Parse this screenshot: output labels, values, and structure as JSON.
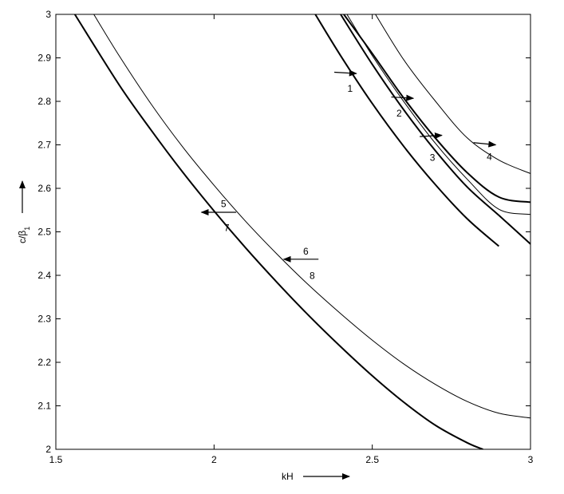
{
  "chart_data": {
    "type": "line",
    "title": "",
    "xlabel": "kH",
    "ylabel_main": "c/β",
    "ylabel_sub": "1",
    "xlim": [
      1.5,
      3
    ],
    "ylim": [
      2,
      3
    ],
    "grid": false,
    "xticks": [
      {
        "value": 1.5,
        "label": "1.5"
      },
      {
        "value": 2,
        "label": "2"
      },
      {
        "value": 2.5,
        "label": "2.5"
      },
      {
        "value": 3,
        "label": "3"
      }
    ],
    "yticks": [
      {
        "value": 2,
        "label": "2"
      },
      {
        "value": 2.1,
        "label": "2.1"
      },
      {
        "value": 2.2,
        "label": "2.2"
      },
      {
        "value": 2.3,
        "label": "2.3"
      },
      {
        "value": 2.4,
        "label": "2.4"
      },
      {
        "value": 2.5,
        "label": "2.5"
      },
      {
        "value": 2.6,
        "label": "2.6"
      },
      {
        "value": 2.7,
        "label": "2.7"
      },
      {
        "value": 2.8,
        "label": "2.8"
      },
      {
        "value": 2.9,
        "label": "2.9"
      },
      {
        "value": 3,
        "label": "3"
      }
    ],
    "series": [
      {
        "weight": "thick",
        "points": [
          [
            1.56,
            3.0
          ],
          [
            1.7,
            2.838
          ],
          [
            1.8,
            2.735
          ],
          [
            1.9,
            2.638
          ],
          [
            2.0,
            2.548
          ],
          [
            2.1,
            2.463
          ],
          [
            2.2,
            2.383
          ],
          [
            2.3,
            2.307
          ],
          [
            2.4,
            2.236
          ],
          [
            2.5,
            2.169
          ],
          [
            2.6,
            2.108
          ],
          [
            2.7,
            2.055
          ],
          [
            2.8,
            2.015
          ],
          [
            2.85,
            2.0
          ]
        ]
      },
      {
        "weight": "thin",
        "points": [
          [
            1.62,
            3.0
          ],
          [
            1.7,
            2.905
          ],
          [
            1.8,
            2.795
          ],
          [
            1.9,
            2.696
          ],
          [
            2.0,
            2.607
          ],
          [
            2.1,
            2.524
          ],
          [
            2.2,
            2.448
          ],
          [
            2.3,
            2.377
          ],
          [
            2.4,
            2.312
          ],
          [
            2.5,
            2.251
          ],
          [
            2.6,
            2.196
          ],
          [
            2.7,
            2.149
          ],
          [
            2.8,
            2.11
          ],
          [
            2.9,
            2.083
          ],
          [
            3.0,
            2.072
          ]
        ]
      },
      {
        "weight": "thick",
        "points": [
          [
            2.32,
            3.0
          ],
          [
            2.4,
            2.905
          ],
          [
            2.5,
            2.795
          ],
          [
            2.6,
            2.696
          ],
          [
            2.7,
            2.608
          ],
          [
            2.8,
            2.53
          ],
          [
            2.9,
            2.467
          ]
        ]
      },
      {
        "weight": "thick",
        "points": [
          [
            2.4,
            3.0
          ],
          [
            2.5,
            2.885
          ],
          [
            2.6,
            2.78
          ],
          [
            2.7,
            2.686
          ],
          [
            2.8,
            2.603
          ],
          [
            2.9,
            2.538
          ],
          [
            3.0,
            2.472
          ]
        ]
      },
      {
        "weight": "thin",
        "points": [
          [
            2.42,
            3.0
          ],
          [
            2.5,
            2.905
          ],
          [
            2.6,
            2.799
          ],
          [
            2.7,
            2.703
          ],
          [
            2.8,
            2.621
          ],
          [
            2.9,
            2.552
          ],
          [
            3.0,
            2.54
          ]
        ]
      },
      {
        "weight": "thick",
        "points": [
          [
            2.41,
            3.0
          ],
          [
            2.5,
            2.91
          ],
          [
            2.6,
            2.807
          ],
          [
            2.7,
            2.715
          ],
          [
            2.8,
            2.636
          ],
          [
            2.9,
            2.58
          ],
          [
            3.0,
            2.568
          ]
        ]
      },
      {
        "weight": "thin",
        "points": [
          [
            2.51,
            3.0
          ],
          [
            2.6,
            2.895
          ],
          [
            2.7,
            2.8
          ],
          [
            2.8,
            2.716
          ],
          [
            2.9,
            2.665
          ],
          [
            3.0,
            2.634
          ]
        ]
      }
    ],
    "annotations": [
      {
        "text": "1",
        "x": 2.43,
        "y": 2.822,
        "arrow_from": [
          2.38,
          2.867
        ],
        "arrow_to": [
          2.45,
          2.864
        ]
      },
      {
        "text": "2",
        "x": 2.585,
        "y": 2.765,
        "arrow_from": [
          2.56,
          2.81
        ],
        "arrow_to": [
          2.63,
          2.807
        ]
      },
      {
        "text": "3",
        "x": 2.69,
        "y": 2.663,
        "arrow_from": [
          2.65,
          2.719
        ],
        "arrow_to": [
          2.72,
          2.722
        ]
      },
      {
        "text": "4",
        "x": 2.87,
        "y": 2.665,
        "arrow_from": [
          2.82,
          2.705
        ],
        "arrow_to": [
          2.89,
          2.7
        ]
      },
      {
        "text": "5",
        "x": 2.03,
        "y": 2.557,
        "arrow_from": [
          2.07,
          2.545
        ],
        "arrow_to": [
          1.96,
          2.545
        ]
      },
      {
        "text": "7",
        "x": 2.04,
        "y": 2.502,
        "arrow_from": null,
        "arrow_to": null
      },
      {
        "text": "6",
        "x": 2.29,
        "y": 2.448,
        "arrow_from": [
          2.33,
          2.437
        ],
        "arrow_to": [
          2.22,
          2.437
        ]
      },
      {
        "text": "8",
        "x": 2.31,
        "y": 2.392,
        "arrow_from": null,
        "arrow_to": null
      }
    ]
  }
}
